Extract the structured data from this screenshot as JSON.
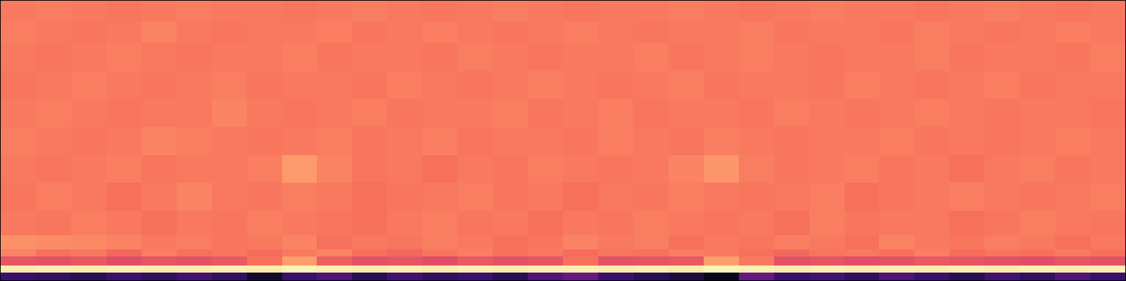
{
  "chart_data": {
    "type": "heatmap",
    "xlim": [
      0,
      32
    ],
    "ylim": [
      0,
      40
    ],
    "zlim": [
      0,
      1
    ],
    "y_edges": [
      0,
      1.2,
      2.2,
      3.5,
      4.5,
      6.5,
      10,
      14,
      18,
      22,
      26,
      30,
      34,
      37,
      40
    ],
    "tick_labels": false,
    "grid": false,
    "cells": [
      [
        0.2,
        0.18,
        0.15,
        0.2,
        0.17,
        0.22,
        0.18,
        0.08,
        0.2,
        0.25,
        0.15,
        0.22,
        0.18,
        0.2,
        0.15,
        0.25,
        0.3,
        0.2,
        0.15,
        0.12,
        0.05,
        0.3,
        0.2,
        0.22,
        0.18,
        0.25,
        0.2,
        0.15,
        0.22,
        0.18,
        0.25,
        0.2
      ],
      [
        0.96,
        0.97,
        0.96,
        0.97,
        0.96,
        0.96,
        0.97,
        0.96,
        0.98,
        0.97,
        0.96,
        0.97,
        0.96,
        0.97,
        0.96,
        0.97,
        0.97,
        0.96,
        0.97,
        0.96,
        0.98,
        0.97,
        0.96,
        0.97,
        0.96,
        0.97,
        0.96,
        0.97,
        0.96,
        0.97,
        0.96,
        0.97
      ],
      [
        0.63,
        0.62,
        0.64,
        0.61,
        0.63,
        0.62,
        0.64,
        0.7,
        0.8,
        0.66,
        0.62,
        0.63,
        0.61,
        0.64,
        0.62,
        0.63,
        0.7,
        0.62,
        0.63,
        0.64,
        0.8,
        0.72,
        0.62,
        0.63,
        0.61,
        0.62,
        0.64,
        0.63,
        0.62,
        0.61,
        0.63,
        0.62
      ],
      [
        0.74,
        0.7,
        0.72,
        0.68,
        0.73,
        0.7,
        0.71,
        0.69,
        0.72,
        0.74,
        0.7,
        0.68,
        0.71,
        0.73,
        0.7,
        0.72,
        0.69,
        0.71,
        0.7,
        0.73,
        0.72,
        0.7,
        0.68,
        0.71,
        0.72,
        0.7,
        0.73,
        0.69,
        0.71,
        0.7,
        0.72,
        0.7
      ],
      [
        0.77,
        0.76,
        0.75,
        0.74,
        0.72,
        0.73,
        0.71,
        0.72,
        0.74,
        0.7,
        0.72,
        0.71,
        0.73,
        0.72,
        0.7,
        0.71,
        0.74,
        0.72,
        0.73,
        0.7,
        0.72,
        0.71,
        0.73,
        0.72,
        0.7,
        0.74,
        0.72,
        0.71,
        0.73,
        0.72,
        0.7,
        0.72
      ],
      [
        0.72,
        0.71,
        0.73,
        0.72,
        0.7,
        0.72,
        0.71,
        0.73,
        0.72,
        0.71,
        0.7,
        0.72,
        0.73,
        0.71,
        0.72,
        0.7,
        0.72,
        0.71,
        0.73,
        0.72,
        0.71,
        0.72,
        0.7,
        0.73,
        0.71,
        0.72,
        0.72,
        0.7,
        0.71,
        0.73,
        0.72,
        0.71
      ],
      [
        0.71,
        0.73,
        0.72,
        0.7,
        0.72,
        0.74,
        0.72,
        0.71,
        0.73,
        0.72,
        0.7,
        0.71,
        0.72,
        0.73,
        0.71,
        0.72,
        0.7,
        0.72,
        0.71,
        0.73,
        0.72,
        0.71,
        0.72,
        0.73,
        0.7,
        0.71,
        0.72,
        0.73,
        0.72,
        0.71,
        0.72,
        0.73
      ],
      [
        0.72,
        0.71,
        0.72,
        0.73,
        0.71,
        0.72,
        0.72,
        0.73,
        0.79,
        0.74,
        0.71,
        0.72,
        0.7,
        0.72,
        0.71,
        0.73,
        0.72,
        0.71,
        0.72,
        0.74,
        0.78,
        0.73,
        0.71,
        0.72,
        0.73,
        0.71,
        0.72,
        0.7,
        0.72,
        0.73,
        0.71,
        0.72
      ],
      [
        0.73,
        0.72,
        0.71,
        0.72,
        0.74,
        0.73,
        0.72,
        0.71,
        0.72,
        0.73,
        0.71,
        0.72,
        0.73,
        0.71,
        0.72,
        0.72,
        0.71,
        0.73,
        0.72,
        0.71,
        0.73,
        0.72,
        0.71,
        0.72,
        0.72,
        0.73,
        0.71,
        0.72,
        0.71,
        0.72,
        0.73,
        0.72
      ],
      [
        0.72,
        0.73,
        0.72,
        0.71,
        0.72,
        0.72,
        0.74,
        0.72,
        0.71,
        0.72,
        0.73,
        0.71,
        0.72,
        0.72,
        0.73,
        0.71,
        0.72,
        0.73,
        0.71,
        0.72,
        0.72,
        0.71,
        0.73,
        0.72,
        0.71,
        0.72,
        0.73,
        0.72,
        0.71,
        0.72,
        0.72,
        0.71
      ],
      [
        0.71,
        0.72,
        0.73,
        0.72,
        0.71,
        0.72,
        0.73,
        0.71,
        0.72,
        0.72,
        0.71,
        0.73,
        0.72,
        0.71,
        0.72,
        0.73,
        0.72,
        0.71,
        0.72,
        0.73,
        0.71,
        0.72,
        0.72,
        0.71,
        0.73,
        0.72,
        0.71,
        0.72,
        0.73,
        0.71,
        0.72,
        0.72
      ],
      [
        0.72,
        0.71,
        0.72,
        0.73,
        0.72,
        0.71,
        0.72,
        0.72,
        0.73,
        0.71,
        0.72,
        0.72,
        0.71,
        0.73,
        0.72,
        0.71,
        0.72,
        0.72,
        0.73,
        0.71,
        0.72,
        0.73,
        0.72,
        0.71,
        0.72,
        0.72,
        0.73,
        0.71,
        0.72,
        0.72,
        0.71,
        0.73
      ],
      [
        0.73,
        0.72,
        0.71,
        0.72,
        0.74,
        0.72,
        0.71,
        0.72,
        0.72,
        0.73,
        0.71,
        0.72,
        0.73,
        0.72,
        0.71,
        0.72,
        0.73,
        0.72,
        0.71,
        0.72,
        0.72,
        0.73,
        0.71,
        0.72,
        0.72,
        0.71,
        0.73,
        0.72,
        0.71,
        0.72,
        0.73,
        0.72
      ],
      [
        0.72,
        0.73,
        0.72,
        0.71,
        0.72,
        0.73,
        0.72,
        0.72,
        0.71,
        0.72,
        0.73,
        0.72,
        0.71,
        0.72,
        0.73,
        0.72,
        0.71,
        0.72,
        0.72,
        0.73,
        0.72,
        0.71,
        0.72,
        0.73,
        0.72,
        0.72,
        0.71,
        0.72,
        0.73,
        0.72,
        0.71,
        0.72
      ]
    ]
  }
}
